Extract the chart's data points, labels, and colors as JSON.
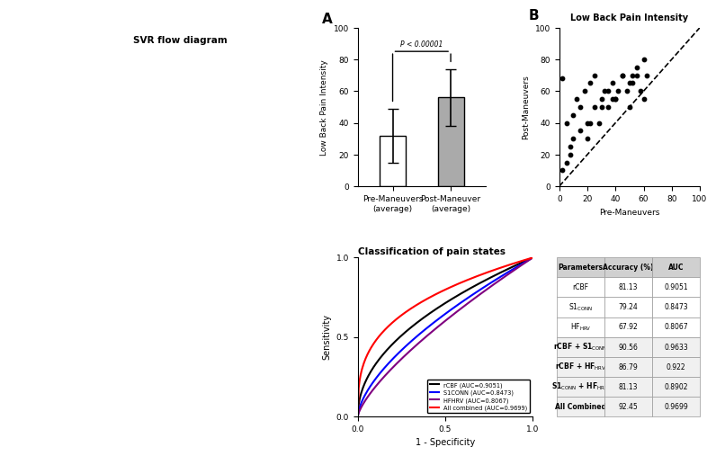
{
  "title_left": "SVR flow diagram",
  "panel_B_scatter_title": "Low Back Pain Intensity",
  "bar_pre_mean": 32,
  "bar_pre_err": 17,
  "bar_post_mean": 56,
  "bar_post_err": 18,
  "bar_pre_color": "white",
  "bar_post_color": "#aaaaaa",
  "bar_edge_color": "black",
  "ylabel_A": "Low Back Pain Intensity",
  "xlabel_A_pre": "Pre-Maneuvers\n(average)",
  "xlabel_A_post": "Post-Maneuver\n(average)",
  "pvalue_text": "P < 0.00001",
  "scatter_B_pre": [
    2,
    5,
    8,
    10,
    12,
    15,
    18,
    20,
    22,
    25,
    28,
    30,
    32,
    35,
    38,
    40,
    42,
    45,
    48,
    50,
    52,
    55,
    58,
    60,
    62,
    2,
    10,
    20,
    30,
    40,
    50,
    60,
    5,
    15,
    25,
    35,
    45,
    55,
    8,
    22,
    38,
    52
  ],
  "scatter_B_post": [
    68,
    40,
    20,
    45,
    55,
    50,
    60,
    30,
    65,
    70,
    40,
    55,
    60,
    50,
    65,
    55,
    60,
    70,
    60,
    50,
    65,
    70,
    60,
    55,
    70,
    10,
    30,
    40,
    50,
    55,
    65,
    80,
    15,
    35,
    50,
    60,
    70,
    75,
    25,
    40,
    55,
    70
  ],
  "roc_title": "Classification of pain states",
  "roc_colors": [
    "black",
    "blue",
    "purple",
    "red"
  ],
  "roc_aucs": [
    0.9051,
    0.8473,
    0.8067,
    0.9699
  ],
  "roc_labels": [
    "rCBF (AUC=0.9051)",
    "S1CONN (AUC=0.8473)",
    "HFHRV (AUC=0.8067)",
    "All combined (AUC=0.9699)"
  ],
  "table_rows": [
    [
      "Parameters",
      "Accuracy (%)",
      "AUC"
    ],
    [
      "rCBF",
      "81.13",
      "0.9051"
    ],
    [
      "S1CONN",
      "79.24",
      "0.8473"
    ],
    [
      "HFHRV",
      "67.92",
      "0.8067"
    ],
    [
      "rCBF + S1CONN",
      "90.56",
      "0.9633"
    ],
    [
      "rCBF + HF_HRV",
      "86.79",
      "0.922"
    ],
    [
      "S1CONN + HF_HRV",
      "81.13",
      "0.8902"
    ],
    [
      "All Combined",
      "92.45",
      "0.9699"
    ]
  ],
  "table_header_color": "#d0d0d0",
  "table_combo_color": "#f0f0f0",
  "bg_color": "white"
}
